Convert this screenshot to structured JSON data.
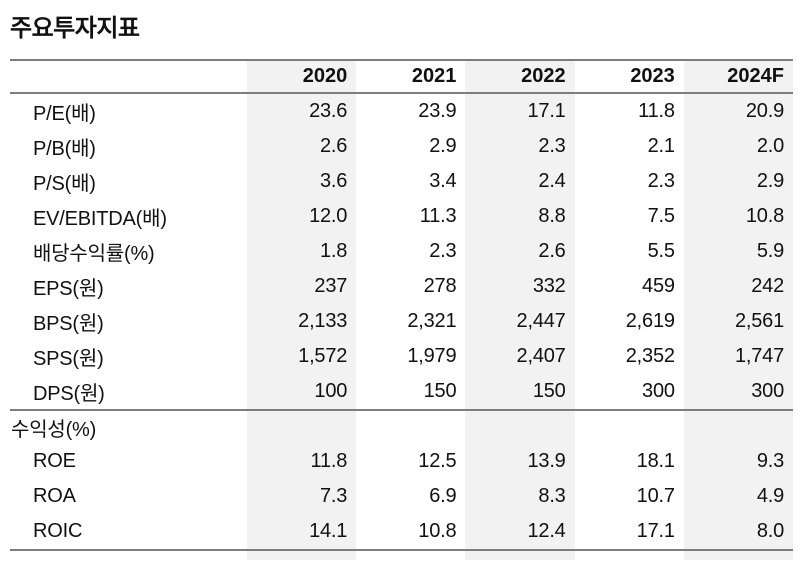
{
  "title": "주요투자지표",
  "table": {
    "columns": [
      "2020",
      "2021",
      "2022",
      "2023",
      "2024F"
    ],
    "shaded_columns": [
      0,
      2,
      4
    ],
    "colors": {
      "shade": "#f2f2f2",
      "rule": "#7d7d7d",
      "text": "#111111"
    },
    "rows": [
      {
        "label": "P/E(배)",
        "section": false,
        "values": [
          "23.6",
          "23.9",
          "17.1",
          "11.8",
          "20.9"
        ]
      },
      {
        "label": "P/B(배)",
        "section": false,
        "values": [
          "2.6",
          "2.9",
          "2.3",
          "2.1",
          "2.0"
        ]
      },
      {
        "label": "P/S(배)",
        "section": false,
        "values": [
          "3.6",
          "3.4",
          "2.4",
          "2.3",
          "2.9"
        ]
      },
      {
        "label": "EV/EBITDA(배)",
        "section": false,
        "values": [
          "12.0",
          "11.3",
          "8.8",
          "7.5",
          "10.8"
        ]
      },
      {
        "label": "배당수익률(%)",
        "section": false,
        "values": [
          "1.8",
          "2.3",
          "2.6",
          "5.5",
          "5.9"
        ]
      },
      {
        "label": "EPS(원)",
        "section": false,
        "values": [
          "237",
          "278",
          "332",
          "459",
          "242"
        ]
      },
      {
        "label": "BPS(원)",
        "section": false,
        "values": [
          "2,133",
          "2,321",
          "2,447",
          "2,619",
          "2,561"
        ]
      },
      {
        "label": "SPS(원)",
        "section": false,
        "values": [
          "1,572",
          "1,979",
          "2,407",
          "2,352",
          "1,747"
        ]
      },
      {
        "label": "DPS(원)",
        "section": false,
        "values": [
          "100",
          "150",
          "150",
          "300",
          "300"
        ]
      },
      {
        "label": "수익성(%)",
        "section": true,
        "values": [
          "",
          "",
          "",
          "",
          ""
        ]
      },
      {
        "label": "ROE",
        "section": false,
        "values": [
          "11.8",
          "12.5",
          "13.9",
          "18.1",
          "9.3"
        ]
      },
      {
        "label": "ROA",
        "section": false,
        "values": [
          "7.3",
          "6.9",
          "8.3",
          "10.7",
          "4.9"
        ]
      },
      {
        "label": "ROIC",
        "section": false,
        "values": [
          "14.1",
          "10.8",
          "12.4",
          "17.1",
          "8.0"
        ]
      }
    ]
  }
}
